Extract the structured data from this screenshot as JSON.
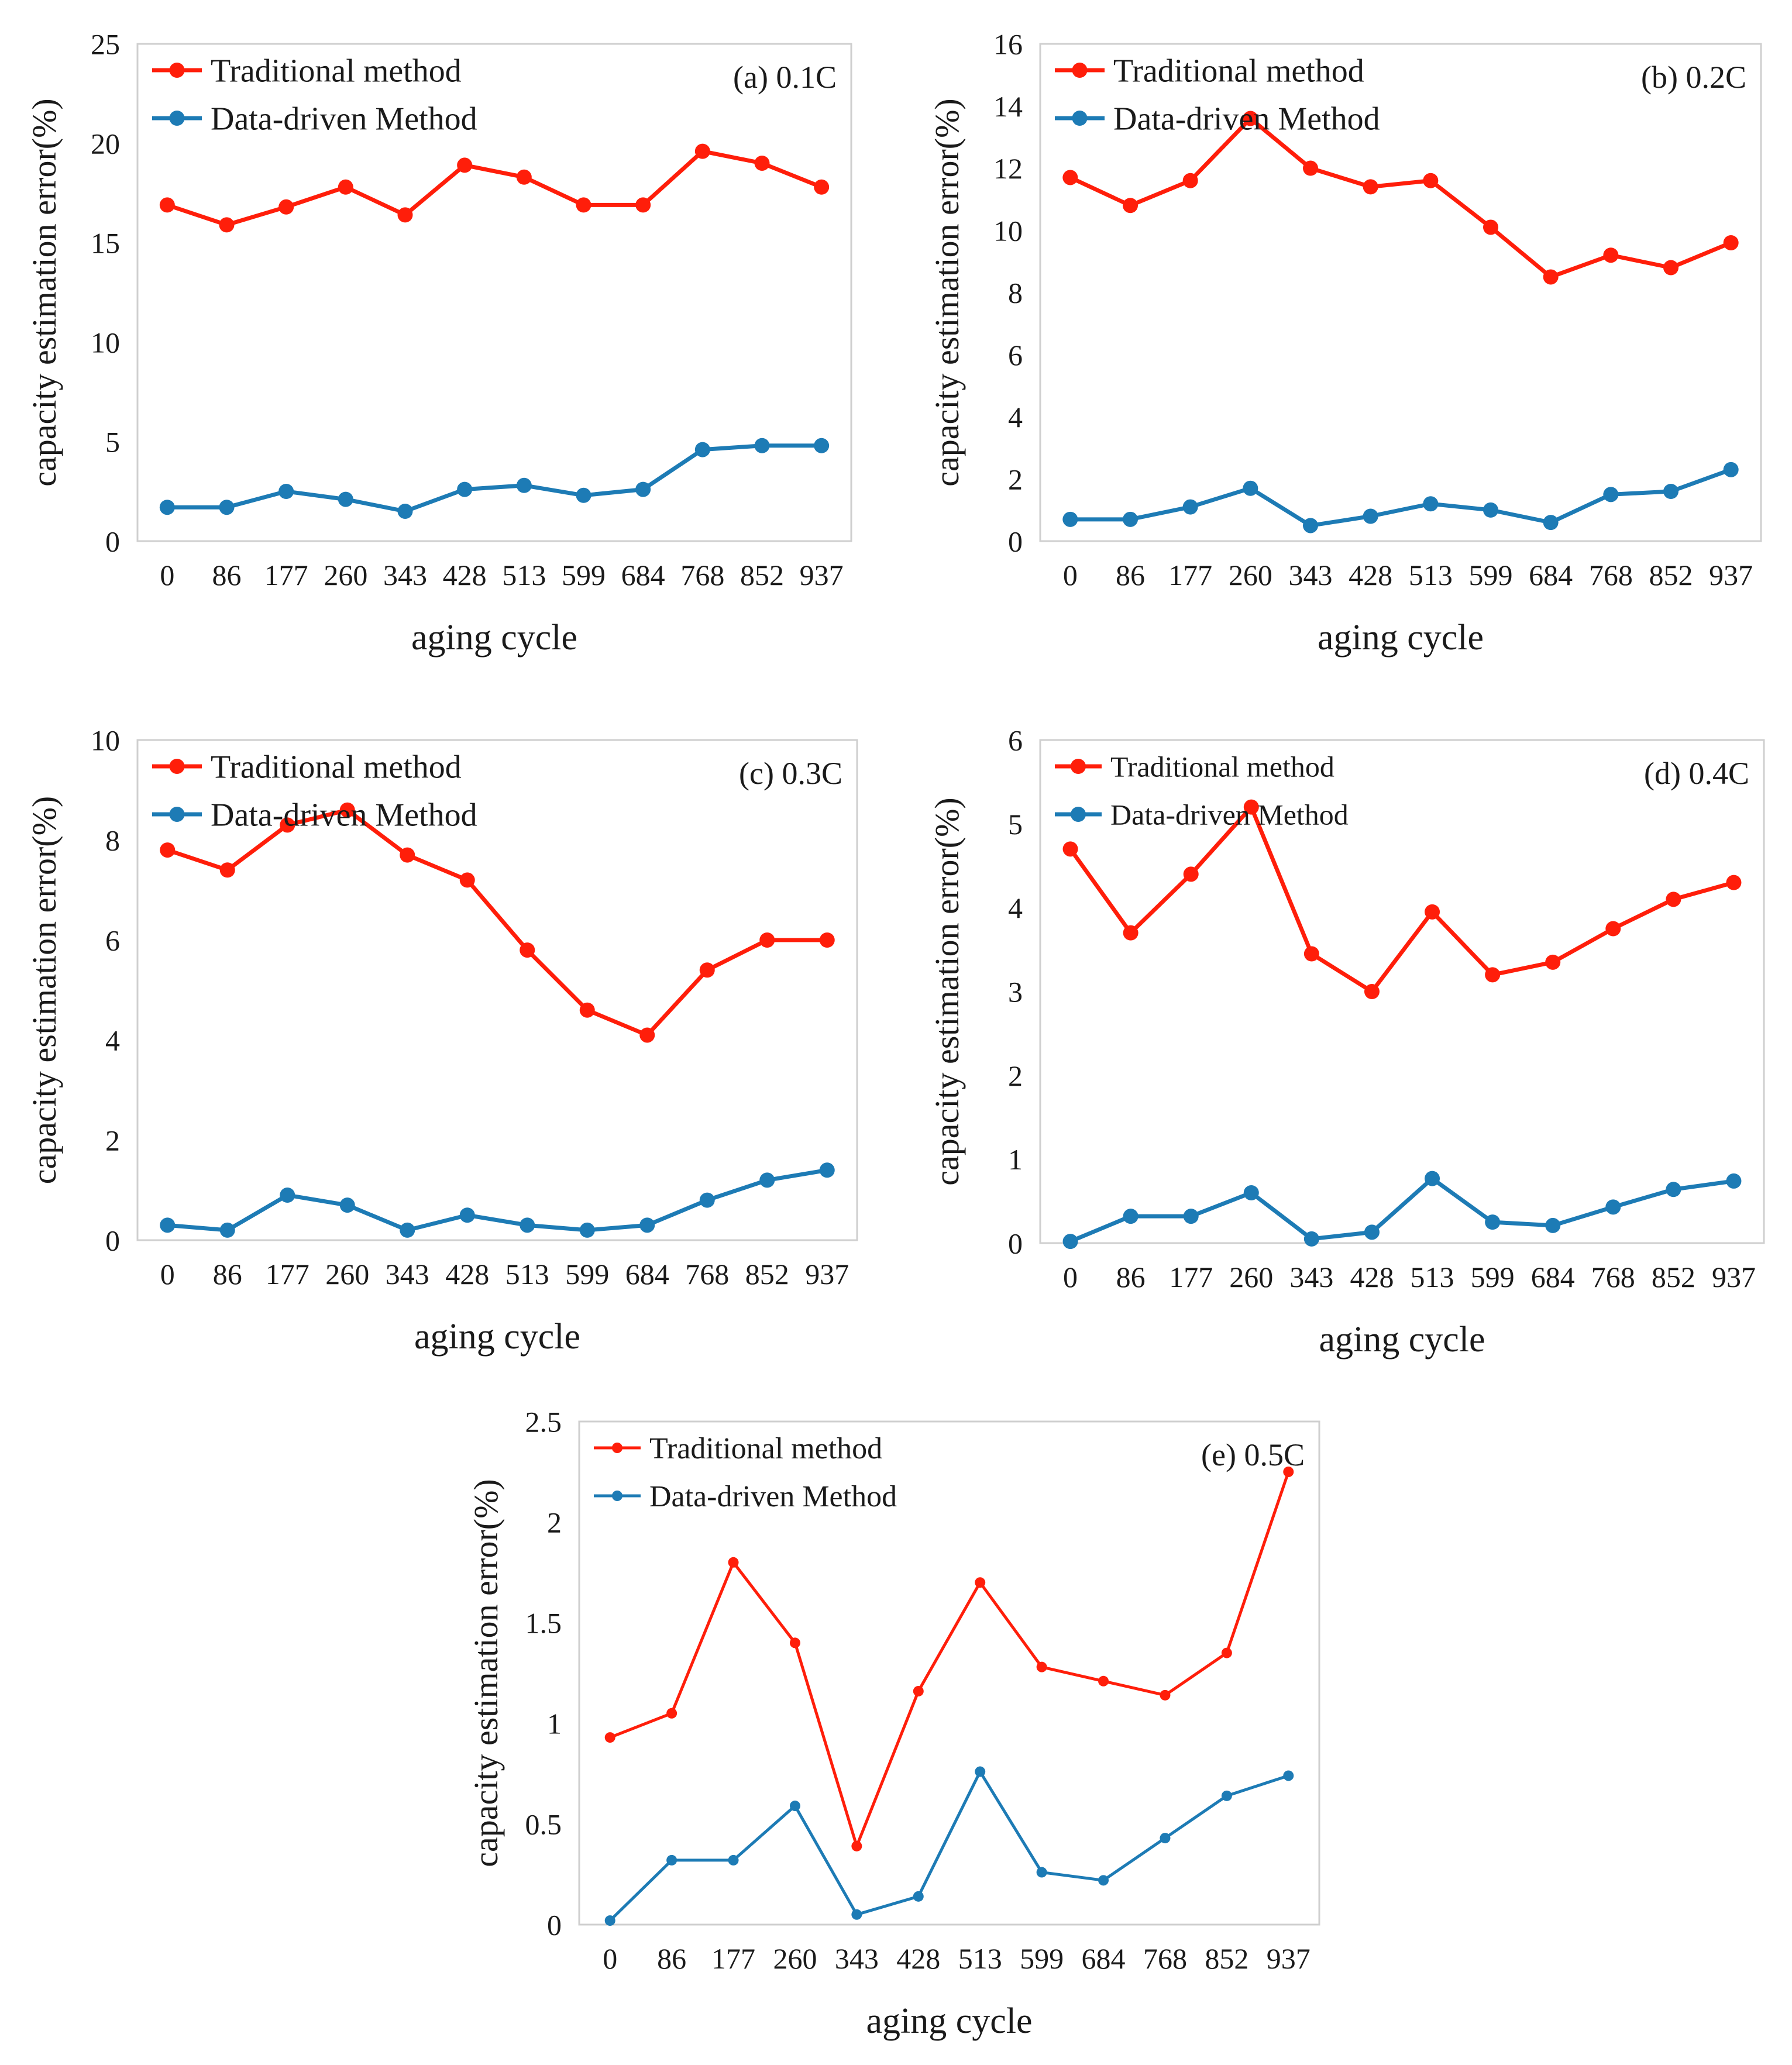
{
  "colors": {
    "traditional": "#ff1e0a",
    "data_driven": "#1d7bb5",
    "text": "#1a1a1a",
    "frame": "#cfcfcf"
  },
  "chart_data": [
    {
      "type": "line",
      "panel_label": "(a) 0.1C",
      "xlabel": "aging cycle",
      "ylabel": "capacity estimation error(%)",
      "categories": [
        "0",
        "86",
        "177",
        "260",
        "343",
        "428",
        "513",
        "599",
        "684",
        "768",
        "852",
        "937"
      ],
      "ylim": [
        0,
        25
      ],
      "yticks": [
        0,
        5,
        10,
        15,
        20,
        25
      ],
      "legend": "top-left",
      "series": [
        {
          "name": "Traditional method",
          "values": [
            16.9,
            15.9,
            16.8,
            17.8,
            16.4,
            18.9,
            18.3,
            16.9,
            16.9,
            19.6,
            19.0,
            17.8
          ]
        },
        {
          "name": "Data-driven Method",
          "values": [
            1.7,
            1.7,
            2.5,
            2.1,
            1.5,
            2.6,
            2.8,
            2.3,
            2.6,
            4.6,
            4.8,
            4.8
          ]
        }
      ]
    },
    {
      "type": "line",
      "panel_label": "(b) 0.2C",
      "xlabel": "aging cycle",
      "ylabel": "capacity estimation error(%)",
      "categories": [
        "0",
        "86",
        "177",
        "260",
        "343",
        "428",
        "513",
        "599",
        "684",
        "768",
        "852",
        "937"
      ],
      "ylim": [
        0,
        16
      ],
      "yticks": [
        0,
        2,
        4,
        6,
        8,
        10,
        12,
        14,
        16
      ],
      "legend": "top-left",
      "series": [
        {
          "name": "Traditional method",
          "values": [
            11.7,
            10.8,
            11.6,
            13.6,
            12.0,
            11.4,
            11.6,
            10.1,
            8.5,
            9.2,
            8.8,
            9.6
          ]
        },
        {
          "name": "Data-driven Method",
          "values": [
            0.7,
            0.7,
            1.1,
            1.7,
            0.5,
            0.8,
            1.2,
            1.0,
            0.6,
            1.5,
            1.6,
            2.3
          ]
        }
      ]
    },
    {
      "type": "line",
      "panel_label": "(c) 0.3C",
      "xlabel": "aging cycle",
      "ylabel": "capacity estimation error(%)",
      "categories": [
        "0",
        "86",
        "177",
        "260",
        "343",
        "428",
        "513",
        "599",
        "684",
        "768",
        "852",
        "937"
      ],
      "ylim": [
        0,
        10
      ],
      "yticks": [
        0,
        2,
        4,
        6,
        8,
        10
      ],
      "legend": "top-left",
      "series": [
        {
          "name": "Traditional method",
          "values": [
            7.8,
            7.4,
            8.3,
            8.6,
            7.7,
            7.2,
            5.8,
            4.6,
            4.1,
            5.4,
            6.0,
            6.0
          ]
        },
        {
          "name": "Data-driven Method",
          "values": [
            0.3,
            0.2,
            0.9,
            0.7,
            0.2,
            0.5,
            0.3,
            0.2,
            0.3,
            0.8,
            1.2,
            1.4
          ]
        }
      ]
    },
    {
      "type": "line",
      "panel_label": "(d) 0.4C",
      "xlabel": "aging cycle",
      "ylabel": "capacity estimation error(%)",
      "categories": [
        "0",
        "86",
        "177",
        "260",
        "343",
        "428",
        "513",
        "599",
        "684",
        "768",
        "852",
        "937"
      ],
      "ylim": [
        0,
        6
      ],
      "yticks": [
        0,
        1,
        2,
        3,
        4,
        5,
        6
      ],
      "legend": "top-left",
      "series": [
        {
          "name": "Traditional method",
          "values": [
            4.7,
            3.7,
            4.4,
            5.2,
            3.45,
            3.0,
            3.95,
            3.2,
            3.35,
            3.75,
            4.1,
            4.3
          ]
        },
        {
          "name": "Data-driven Method",
          "values": [
            0.02,
            0.32,
            0.32,
            0.6,
            0.05,
            0.13,
            0.77,
            0.25,
            0.21,
            0.43,
            0.64,
            0.74
          ]
        }
      ]
    },
    {
      "type": "line",
      "panel_label": "(e) 0.5C",
      "xlabel": "aging cycle",
      "ylabel": "capacity estimation error(%)",
      "categories": [
        "0",
        "86",
        "177",
        "260",
        "343",
        "428",
        "513",
        "599",
        "684",
        "768",
        "852",
        "937"
      ],
      "ylim": [
        0,
        2.5
      ],
      "yticks": [
        0,
        0.5,
        1,
        1.5,
        2,
        2.5
      ],
      "legend": "top-left",
      "series": [
        {
          "name": "Traditional method",
          "values": [
            0.93,
            1.05,
            1.8,
            1.4,
            0.39,
            1.16,
            1.7,
            1.28,
            1.21,
            1.14,
            1.35,
            2.25
          ]
        },
        {
          "name": "Data-driven Method",
          "values": [
            0.02,
            0.32,
            0.32,
            0.59,
            0.05,
            0.14,
            0.76,
            0.26,
            0.22,
            0.43,
            0.64,
            0.74
          ]
        }
      ]
    }
  ]
}
